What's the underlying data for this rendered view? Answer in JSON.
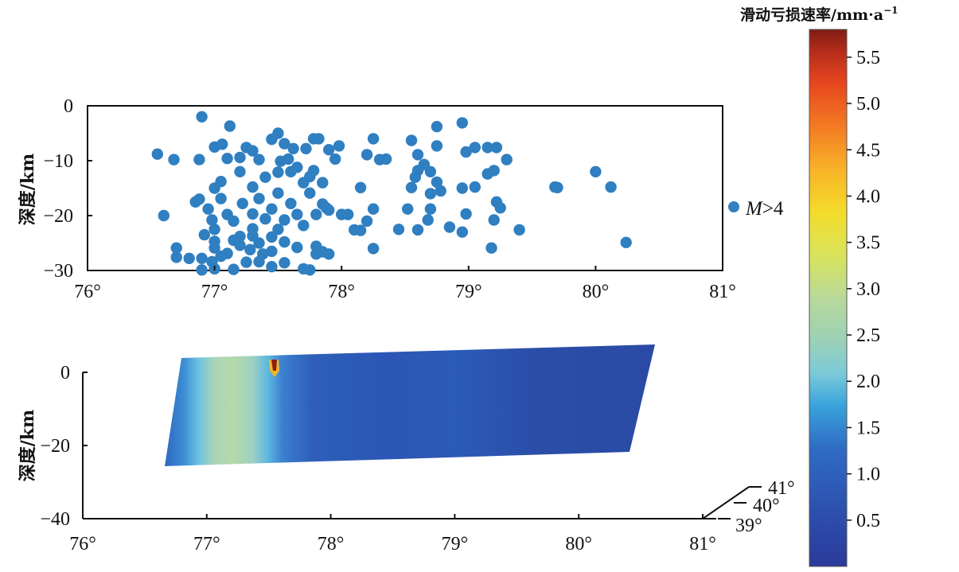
{
  "colorbar": {
    "title": "滑动亏损速率/mm·a",
    "title_sup": "−1",
    "ticks": [
      "5.5",
      "5.0",
      "4.5",
      "4.0",
      "3.5",
      "3.0",
      "2.5",
      "2.0",
      "1.5",
      "1.0",
      "0.5"
    ],
    "range": [
      0,
      5.8
    ]
  },
  "chart_data": [
    {
      "type": "scatter",
      "ylabel": "深度/km",
      "xticks": [
        "76°",
        "77°",
        "78°",
        "79°",
        "80°",
        "81°"
      ],
      "yticks": [
        "0",
        "−10",
        "−20",
        "−30"
      ],
      "xlim": [
        76,
        81
      ],
      "ylim": [
        -30,
        0
      ],
      "legend": {
        "label_italic": "M",
        "label_rest": ">4",
        "placement": "right"
      },
      "marker_color": "#2f7fc1",
      "points": [
        [
          76.9,
          -2
        ],
        [
          77.12,
          -3.7
        ],
        [
          76.55,
          -8.8
        ],
        [
          76.6,
          -20
        ],
        [
          76.68,
          -9.8
        ],
        [
          76.88,
          -9.8
        ],
        [
          77.0,
          -7.5
        ],
        [
          77.06,
          -7.0
        ],
        [
          77.1,
          -9.6
        ],
        [
          77.2,
          -9.4
        ],
        [
          77.25,
          -7.6
        ],
        [
          77.3,
          -8.2
        ],
        [
          77.35,
          -9.8
        ],
        [
          77.45,
          -6.1
        ],
        [
          77.5,
          -5.0
        ],
        [
          77.55,
          -6.9
        ],
        [
          77.58,
          -9.7
        ],
        [
          77.62,
          -7.8
        ],
        [
          77.72,
          -7.8
        ],
        [
          77.78,
          -6.0
        ],
        [
          77.82,
          -6.0
        ],
        [
          77.9,
          -8.0
        ],
        [
          77.95,
          -9.7
        ],
        [
          77.98,
          -7.3
        ],
        [
          78.2,
          -8.9
        ],
        [
          78.25,
          -6.0
        ],
        [
          78.3,
          -9.8
        ],
        [
          78.35,
          -9.7
        ],
        [
          78.55,
          -6.3
        ],
        [
          78.6,
          -8.9
        ],
        [
          78.65,
          -10.7
        ],
        [
          78.75,
          -3.8
        ],
        [
          78.75,
          -7.3
        ],
        [
          78.95,
          -3.1
        ],
        [
          78.98,
          -8.4
        ],
        [
          79.05,
          -7.6
        ],
        [
          79.15,
          -7.6
        ],
        [
          79.22,
          -7.6
        ],
        [
          79.3,
          -9.8
        ],
        [
          79.15,
          -12.4
        ],
        [
          79.2,
          -11.8
        ],
        [
          79.22,
          -17.5
        ],
        [
          79.25,
          -18.6
        ],
        [
          79.2,
          -20.8
        ],
        [
          79.18,
          -25.9
        ],
        [
          79.4,
          -22.6
        ],
        [
          79.05,
          -14.8
        ],
        [
          78.95,
          -15.0
        ],
        [
          78.98,
          -19.7
        ],
        [
          78.95,
          -23.0
        ],
        [
          78.75,
          -13.9
        ],
        [
          78.7,
          -12.0
        ],
        [
          78.7,
          -18.8
        ],
        [
          78.68,
          -20.8
        ],
        [
          78.78,
          -15.5
        ],
        [
          78.7,
          -16.0
        ],
        [
          78.85,
          -22.1
        ],
        [
          78.6,
          -22.6
        ],
        [
          78.6,
          -11.8
        ],
        [
          78.58,
          -13.0
        ],
        [
          78.55,
          -14.9
        ],
        [
          78.52,
          -18.8
        ],
        [
          78.45,
          -22.5
        ],
        [
          78.25,
          -18.8
        ],
        [
          78.2,
          -21.0
        ],
        [
          78.15,
          -22.7
        ],
        [
          78.1,
          -22.6
        ],
        [
          78.15,
          -14.9
        ],
        [
          78.0,
          -19.8
        ],
        [
          78.25,
          -26.0
        ],
        [
          78.05,
          -19.8
        ],
        [
          79.68,
          -14.8
        ],
        [
          79.7,
          -14.9
        ],
        [
          80.0,
          -12.0
        ],
        [
          80.12,
          -14.8
        ],
        [
          80.24,
          -24.9
        ],
        [
          76.88,
          -17.0
        ],
        [
          76.95,
          -18.8
        ],
        [
          76.98,
          -20.8
        ],
        [
          77.0,
          -22.5
        ],
        [
          77.05,
          -16.9
        ],
        [
          77.1,
          -19.8
        ],
        [
          77.15,
          -21.0
        ],
        [
          77.2,
          -23.8
        ],
        [
          77.22,
          -17.8
        ],
        [
          77.3,
          -19.7
        ],
        [
          77.3,
          -22.4
        ],
        [
          77.35,
          -16.9
        ],
        [
          77.4,
          -20.6
        ],
        [
          77.45,
          -18.8
        ],
        [
          77.5,
          -22.5
        ],
        [
          77.5,
          -15.9
        ],
        [
          77.55,
          -20.8
        ],
        [
          77.6,
          -17.8
        ],
        [
          77.65,
          -19.8
        ],
        [
          77.7,
          -21.8
        ],
        [
          77.75,
          -15.9
        ],
        [
          77.8,
          -19.8
        ],
        [
          77.85,
          -17.9
        ],
        [
          77.88,
          -18.6
        ],
        [
          77.7,
          -14.0
        ],
        [
          77.75,
          -12.9
        ],
        [
          77.6,
          -12.0
        ],
        [
          77.5,
          -12.1
        ],
        [
          77.4,
          -13.0
        ],
        [
          77.3,
          -14.8
        ],
        [
          77.2,
          -12.0
        ],
        [
          77.05,
          -13.8
        ],
        [
          77.0,
          -15.0
        ],
        [
          77.52,
          -10.1
        ],
        [
          77.65,
          -11.2
        ],
        [
          77.78,
          -11.8
        ],
        [
          77.85,
          -14.0
        ],
        [
          77.9,
          -19.0
        ],
        [
          77.55,
          -24.8
        ],
        [
          77.45,
          -26.5
        ],
        [
          77.35,
          -25.0
        ],
        [
          77.2,
          -25.4
        ],
        [
          77.1,
          -26.9
        ],
        [
          77.0,
          -25.9
        ],
        [
          76.9,
          -27.8
        ],
        [
          76.8,
          -27.8
        ],
        [
          76.7,
          -27.6
        ],
        [
          76.7,
          -25.9
        ],
        [
          76.9,
          -29.9
        ],
        [
          77.0,
          -29.7
        ],
        [
          77.15,
          -29.8
        ],
        [
          77.25,
          -28.5
        ],
        [
          77.35,
          -28.4
        ],
        [
          77.45,
          -29.3
        ],
        [
          77.55,
          -28.6
        ],
        [
          77.65,
          -25.8
        ],
        [
          77.7,
          -29.7
        ],
        [
          77.75,
          -29.9
        ],
        [
          77.8,
          -27.0
        ],
        [
          77.85,
          -26.6
        ],
        [
          77.9,
          -27.0
        ],
        [
          77.8,
          -25.6
        ],
        [
          77.45,
          -23.9
        ],
        [
          77.3,
          -23.7
        ],
        [
          77.0,
          -24.7
        ],
        [
          77.15,
          -24.5
        ],
        [
          76.85,
          -17.5
        ],
        [
          76.92,
          -23.5
        ],
        [
          77.05,
          -27.4
        ],
        [
          77.38,
          -27.0
        ],
        [
          77.28,
          -26.2
        ],
        [
          76.98,
          -28.4
        ]
      ]
    },
    {
      "type": "heatmap",
      "ylabel": "深度/km",
      "xticks": [
        "76°",
        "77°",
        "78°",
        "79°",
        "80°",
        "81°"
      ],
      "yticks": [
        "0",
        "−20",
        "−40"
      ],
      "zticks": [
        "41°",
        "40°",
        "39°"
      ],
      "xlim": [
        76,
        81
      ],
      "ylim": [
        -40,
        5
      ],
      "colorbar_range": [
        0,
        5.8
      ]
    }
  ]
}
